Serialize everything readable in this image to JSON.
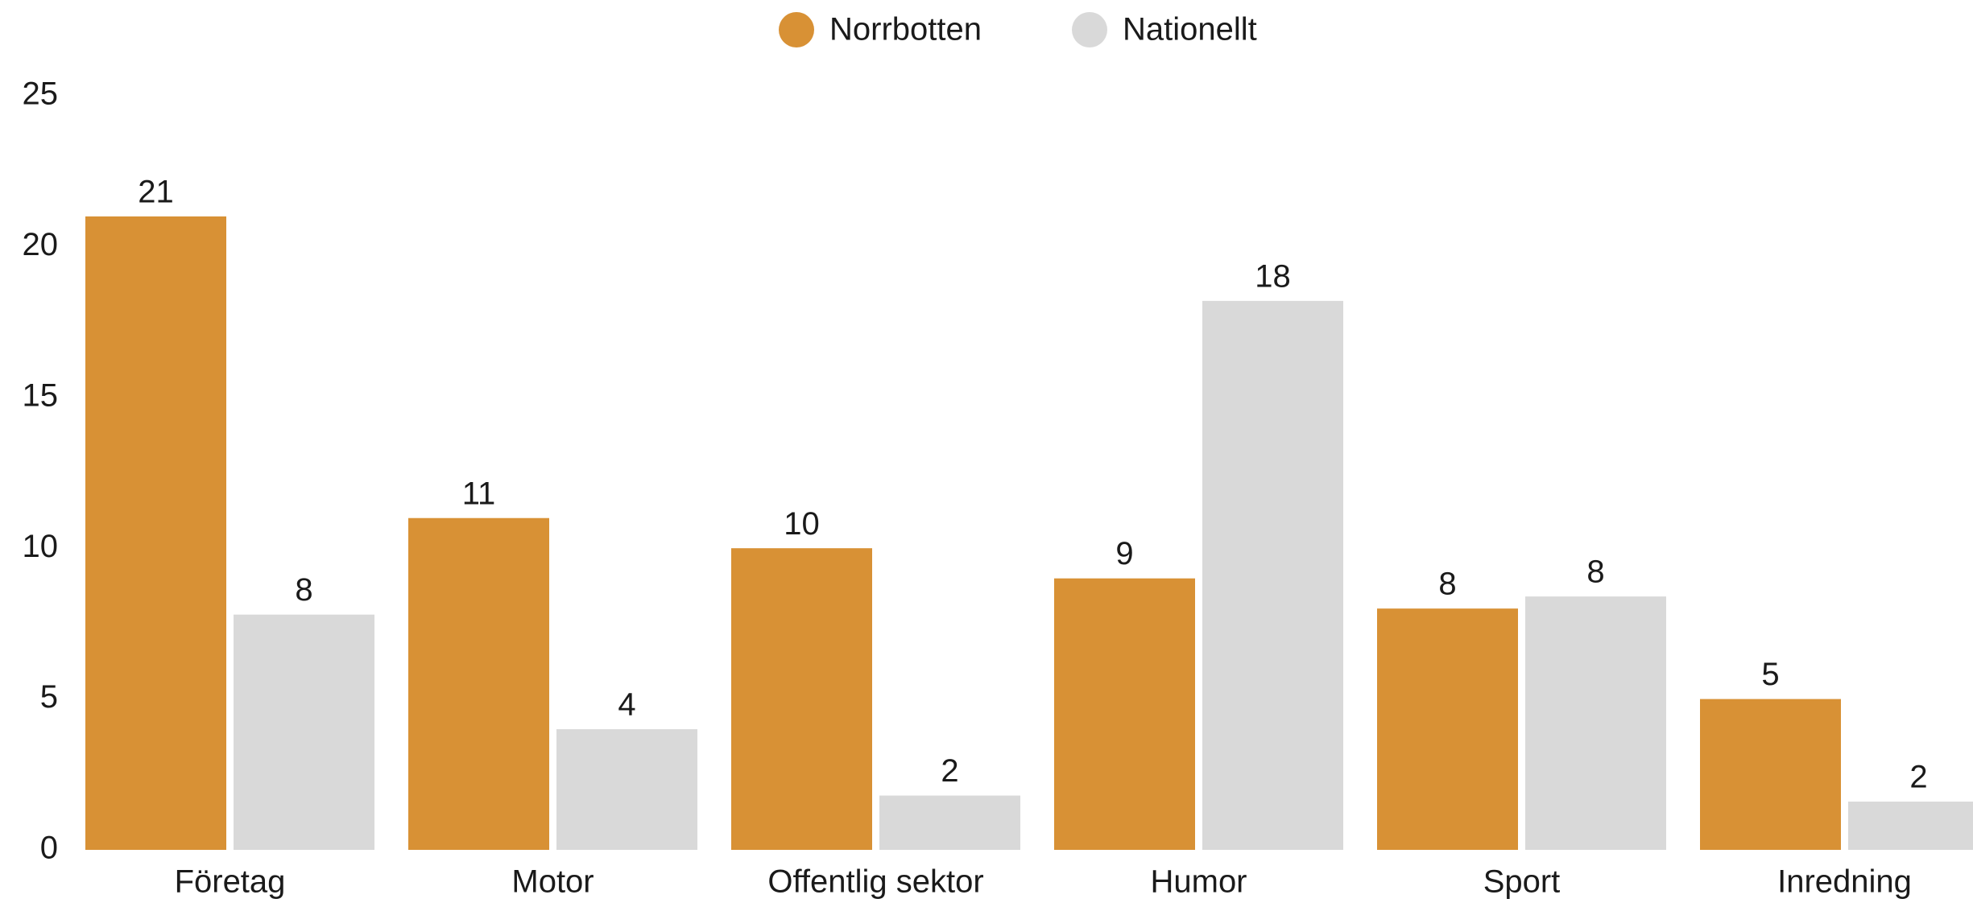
{
  "chart_data": {
    "type": "bar",
    "categories": [
      "Företag",
      "Motor",
      "Offentlig sektor",
      "Humor",
      "Sport",
      "Inredning"
    ],
    "series": [
      {
        "name": "Norrbotten",
        "color": "#d89135",
        "values": [
          21,
          11,
          10,
          9,
          8,
          5
        ]
      },
      {
        "name": "Nationellt",
        "color": "#d9d9d9",
        "values": [
          7.8,
          4,
          1.8,
          18.2,
          8.4,
          1.6
        ],
        "value_labels": [
          "8",
          "4",
          "2",
          "18",
          "8",
          "2"
        ]
      }
    ],
    "ylim": [
      0,
      25
    ],
    "yticks": [
      0,
      5,
      10,
      15,
      20,
      25
    ],
    "grid": false,
    "legend": "top"
  }
}
